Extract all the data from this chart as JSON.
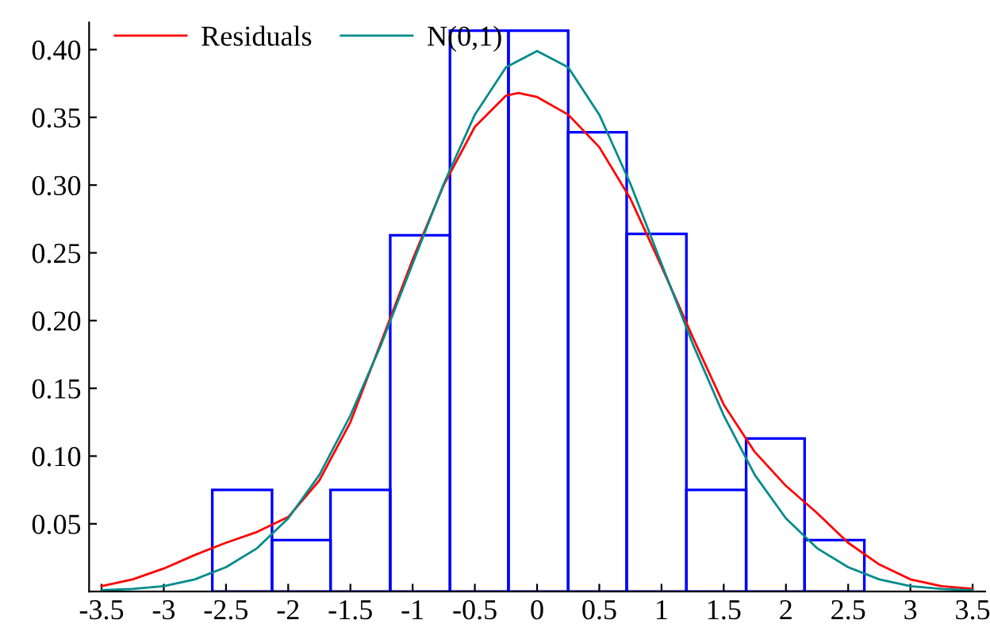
{
  "chart_data": {
    "type": "histogram",
    "bins": [
      -2.61,
      -2.13,
      -1.66,
      -1.18,
      -0.7,
      -0.23,
      0.25,
      0.72,
      1.2,
      1.68,
      2.15,
      2.63
    ],
    "values": [
      0.075,
      0.038,
      0.075,
      0.263,
      0.414,
      0.414,
      0.339,
      0.264,
      0.075,
      0.113,
      0.038
    ],
    "color": "#0000ff",
    "series": [
      {
        "name": "Residuals",
        "type": "line",
        "color": "#ff0000",
        "x": [
          -3.5,
          -3.25,
          -3,
          -2.75,
          -2.5,
          -2.25,
          -2,
          -1.75,
          -1.5,
          -1.25,
          -1,
          -0.75,
          -0.5,
          -0.25,
          -0.15,
          0,
          0.25,
          0.5,
          0.75,
          1,
          1.25,
          1.5,
          1.75,
          2,
          2.25,
          2.5,
          2.75,
          3,
          3.25,
          3.5
        ],
        "values": [
          0.004,
          0.009,
          0.017,
          0.027,
          0.036,
          0.044,
          0.055,
          0.082,
          0.125,
          0.185,
          0.245,
          0.3,
          0.343,
          0.366,
          0.368,
          0.365,
          0.352,
          0.328,
          0.29,
          0.24,
          0.188,
          0.138,
          0.103,
          0.078,
          0.058,
          0.036,
          0.02,
          0.009,
          0.004,
          0.002
        ]
      },
      {
        "name": "N(0,1)",
        "type": "line",
        "color": "#008b8b",
        "x": [
          -3.5,
          -3.25,
          -3,
          -2.75,
          -2.5,
          -2.25,
          -2,
          -1.75,
          -1.5,
          -1.25,
          -1,
          -0.75,
          -0.5,
          -0.25,
          0,
          0.25,
          0.5,
          0.75,
          1,
          1.25,
          1.5,
          1.75,
          2,
          2.25,
          2.5,
          2.75,
          3,
          3.25,
          3.5
        ],
        "values": [
          0.001,
          0.002,
          0.004,
          0.009,
          0.018,
          0.032,
          0.054,
          0.086,
          0.13,
          0.183,
          0.242,
          0.301,
          0.352,
          0.387,
          0.399,
          0.387,
          0.352,
          0.301,
          0.242,
          0.183,
          0.13,
          0.086,
          0.054,
          0.032,
          0.018,
          0.009,
          0.004,
          0.002,
          0.001
        ]
      }
    ],
    "xlim": [
      -3.6,
      3.6
    ],
    "xticks": [
      -3.5,
      -3,
      -2.5,
      -2,
      -1.5,
      -1,
      -0.5,
      0,
      0.5,
      1,
      1.5,
      2,
      2.5,
      3,
      3.5
    ],
    "ylim": [
      0,
      0.42
    ],
    "yticks": [
      {
        "value": 0.05,
        "label": "0.05"
      },
      {
        "value": 0.1,
        "label": "0.10"
      },
      {
        "value": 0.15,
        "label": "0.15"
      },
      {
        "value": 0.2,
        "label": "0.20"
      },
      {
        "value": 0.25,
        "label": "0.25"
      },
      {
        "value": 0.3,
        "label": "0.30"
      },
      {
        "value": 0.35,
        "label": "0.35"
      },
      {
        "value": 0.4,
        "label": "0.40"
      }
    ],
    "grid": false,
    "legend": "top left"
  }
}
